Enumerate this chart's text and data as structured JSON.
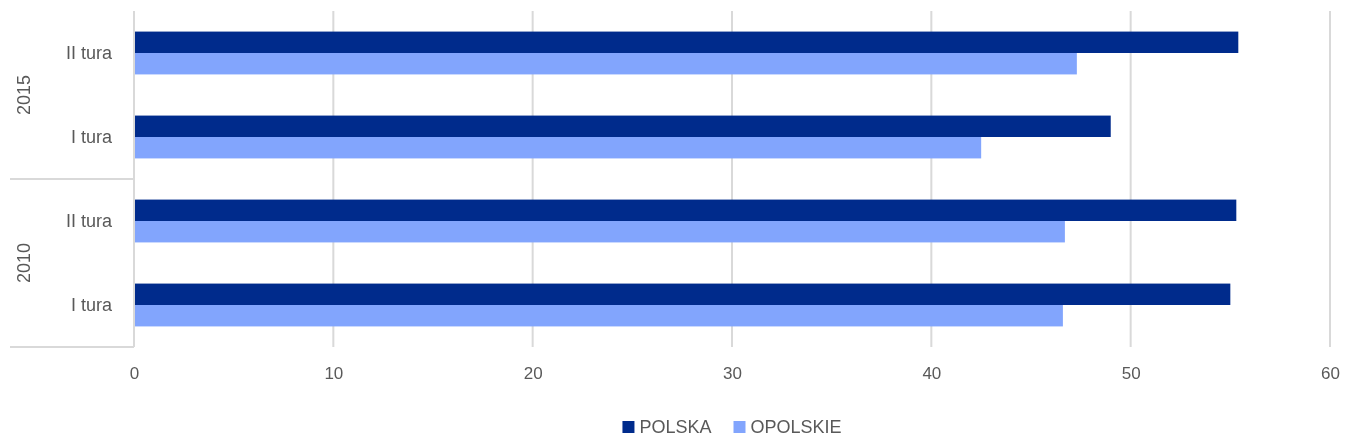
{
  "chart_data": {
    "type": "bar",
    "orientation": "horizontal",
    "categories": [
      "II tura",
      "I tura",
      "II tura",
      "I tura"
    ],
    "series": [
      {
        "name": "POLSKA",
        "color": "#002b8c",
        "values": [
          55.4,
          49.0,
          55.3,
          55.0
        ]
      },
      {
        "name": "OPOLSKIE",
        "color": "#82a5fd",
        "values": [
          47.3,
          42.5,
          46.7,
          46.6
        ]
      }
    ],
    "xlim": [
      0,
      60
    ],
    "xticks": [
      0,
      10,
      20,
      30,
      40,
      50,
      60
    ],
    "annotations": [
      "2015",
      "2010"
    ],
    "grid": "x",
    "legend": "bottom"
  }
}
